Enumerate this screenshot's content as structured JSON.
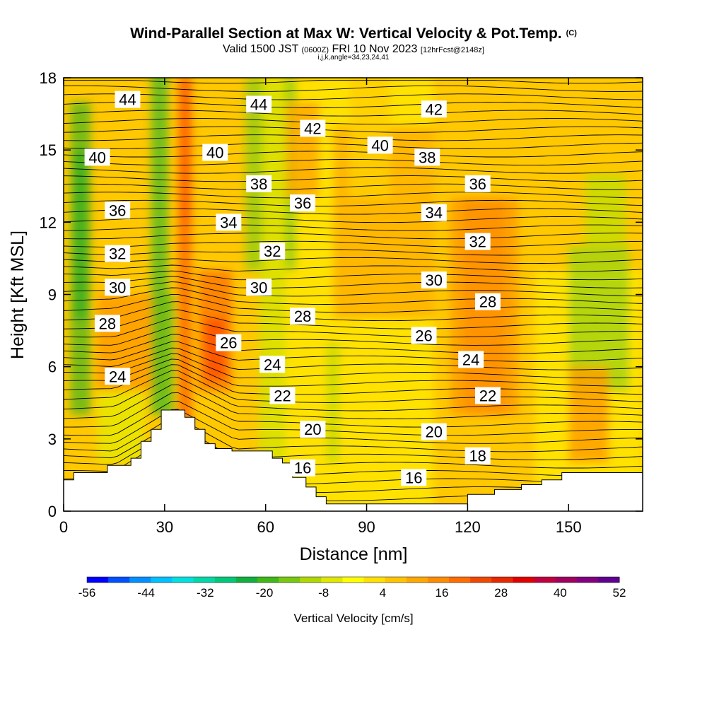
{
  "chart_data": {
    "type": "heatmap",
    "title": "Wind-Parallel Section at Max W: Vertical Velocity & Pot.Temp.",
    "title_mark": "(C)",
    "subtitle_valid": "Valid 1500 JST",
    "subtitle_zulu": "(0600Z)",
    "subtitle_date": "FRI 10 Nov 2023",
    "subtitle_fcst": "[12hrFcst@2148z]",
    "subtitle_ijk": "i,j,k,angle=34,23,24,41",
    "xlabel": "Distance [nm]",
    "ylabel": "Height [Kft MSL]",
    "xlim": [
      0,
      172
    ],
    "ylim": [
      0,
      18
    ],
    "x_ticks": [
      0,
      30,
      60,
      90,
      120,
      150
    ],
    "y_ticks": [
      0,
      3,
      6,
      9,
      12,
      15,
      18
    ],
    "colorbar": {
      "label": "Vertical Velocity [cm/s]",
      "ticks": [
        -56,
        -44,
        -32,
        -20,
        -8,
        4,
        16,
        28,
        40,
        52
      ],
      "colors": [
        "#0000ff",
        "#0050ff",
        "#0090ff",
        "#00c0ff",
        "#00e0e0",
        "#00d8a8",
        "#00c878",
        "#10b040",
        "#40b818",
        "#78c810",
        "#b0d800",
        "#e0e800",
        "#ffff00",
        "#ffe000",
        "#ffc400",
        "#ffa800",
        "#ff8c00",
        "#ff6c00",
        "#f04800",
        "#e82800",
        "#e00000",
        "#c00040",
        "#a00060",
        "#800080",
        "#600090"
      ]
    },
    "theta_contour_labels": [
      {
        "v": "44",
        "x": 19,
        "y": 17.1
      },
      {
        "v": "44",
        "x": 58,
        "y": 16.9
      },
      {
        "v": "42",
        "x": 110,
        "y": 16.7
      },
      {
        "v": "42",
        "x": 74,
        "y": 15.9
      },
      {
        "v": "40",
        "x": 94,
        "y": 15.2
      },
      {
        "v": "40",
        "x": 10,
        "y": 14.7
      },
      {
        "v": "40",
        "x": 45,
        "y": 14.9
      },
      {
        "v": "38",
        "x": 108,
        "y": 14.7
      },
      {
        "v": "38",
        "x": 58,
        "y": 13.6
      },
      {
        "v": "36",
        "x": 123,
        "y": 13.6
      },
      {
        "v": "36",
        "x": 71,
        "y": 12.8
      },
      {
        "v": "36",
        "x": 16,
        "y": 12.5
      },
      {
        "v": "34",
        "x": 110,
        "y": 12.4
      },
      {
        "v": "34",
        "x": 49,
        "y": 12.0
      },
      {
        "v": "32",
        "x": 123,
        "y": 11.2
      },
      {
        "v": "32",
        "x": 62,
        "y": 10.8
      },
      {
        "v": "32",
        "x": 16,
        "y": 10.7
      },
      {
        "v": "30",
        "x": 110,
        "y": 9.6
      },
      {
        "v": "30",
        "x": 16,
        "y": 9.3
      },
      {
        "v": "30",
        "x": 58,
        "y": 9.3
      },
      {
        "v": "28",
        "x": 126,
        "y": 8.7
      },
      {
        "v": "28",
        "x": 71,
        "y": 8.1
      },
      {
        "v": "28",
        "x": 13,
        "y": 7.8
      },
      {
        "v": "26",
        "x": 49,
        "y": 7.0
      },
      {
        "v": "26",
        "x": 107,
        "y": 7.3
      },
      {
        "v": "24",
        "x": 121,
        "y": 6.3
      },
      {
        "v": "24",
        "x": 62,
        "y": 6.1
      },
      {
        "v": "24",
        "x": 16,
        "y": 5.6
      },
      {
        "v": "22",
        "x": 126,
        "y": 4.8
      },
      {
        "v": "22",
        "x": 65,
        "y": 4.8
      },
      {
        "v": "20",
        "x": 74,
        "y": 3.4
      },
      {
        "v": "20",
        "x": 110,
        "y": 3.3
      },
      {
        "v": "18",
        "x": 123,
        "y": 2.3
      },
      {
        "v": "16",
        "x": 71,
        "y": 1.8
      },
      {
        "v": "16",
        "x": 104,
        "y": 1.4
      }
    ],
    "terrain": [
      [
        0,
        1.3
      ],
      [
        3,
        1.3
      ],
      [
        3,
        1.6
      ],
      [
        13,
        1.6
      ],
      [
        13,
        1.9
      ],
      [
        20,
        1.9
      ],
      [
        20,
        2.2
      ],
      [
        23,
        2.2
      ],
      [
        23,
        2.9
      ],
      [
        26,
        2.9
      ],
      [
        26,
        3.4
      ],
      [
        29,
        3.4
      ],
      [
        29,
        4.2
      ],
      [
        36,
        4.2
      ],
      [
        36,
        3.9
      ],
      [
        39,
        3.9
      ],
      [
        39,
        3.4
      ],
      [
        42,
        3.4
      ],
      [
        42,
        2.8
      ],
      [
        45,
        2.8
      ],
      [
        45,
        2.6
      ],
      [
        50,
        2.6
      ],
      [
        50,
        2.5
      ],
      [
        62,
        2.5
      ],
      [
        62,
        2.2
      ],
      [
        65,
        2.2
      ],
      [
        65,
        2.0
      ],
      [
        68,
        2.0
      ],
      [
        68,
        1.4
      ],
      [
        72,
        1.4
      ],
      [
        72,
        1.0
      ],
      [
        75,
        1.0
      ],
      [
        75,
        0.6
      ],
      [
        78,
        0.6
      ],
      [
        78,
        0.3
      ],
      [
        120,
        0.3
      ],
      [
        120,
        0.7
      ],
      [
        128,
        0.7
      ],
      [
        128,
        0.9
      ],
      [
        136,
        0.9
      ],
      [
        136,
        1.1
      ],
      [
        142,
        1.1
      ],
      [
        142,
        1.3
      ],
      [
        148,
        1.3
      ],
      [
        148,
        1.6
      ],
      [
        172,
        1.6
      ]
    ]
  }
}
